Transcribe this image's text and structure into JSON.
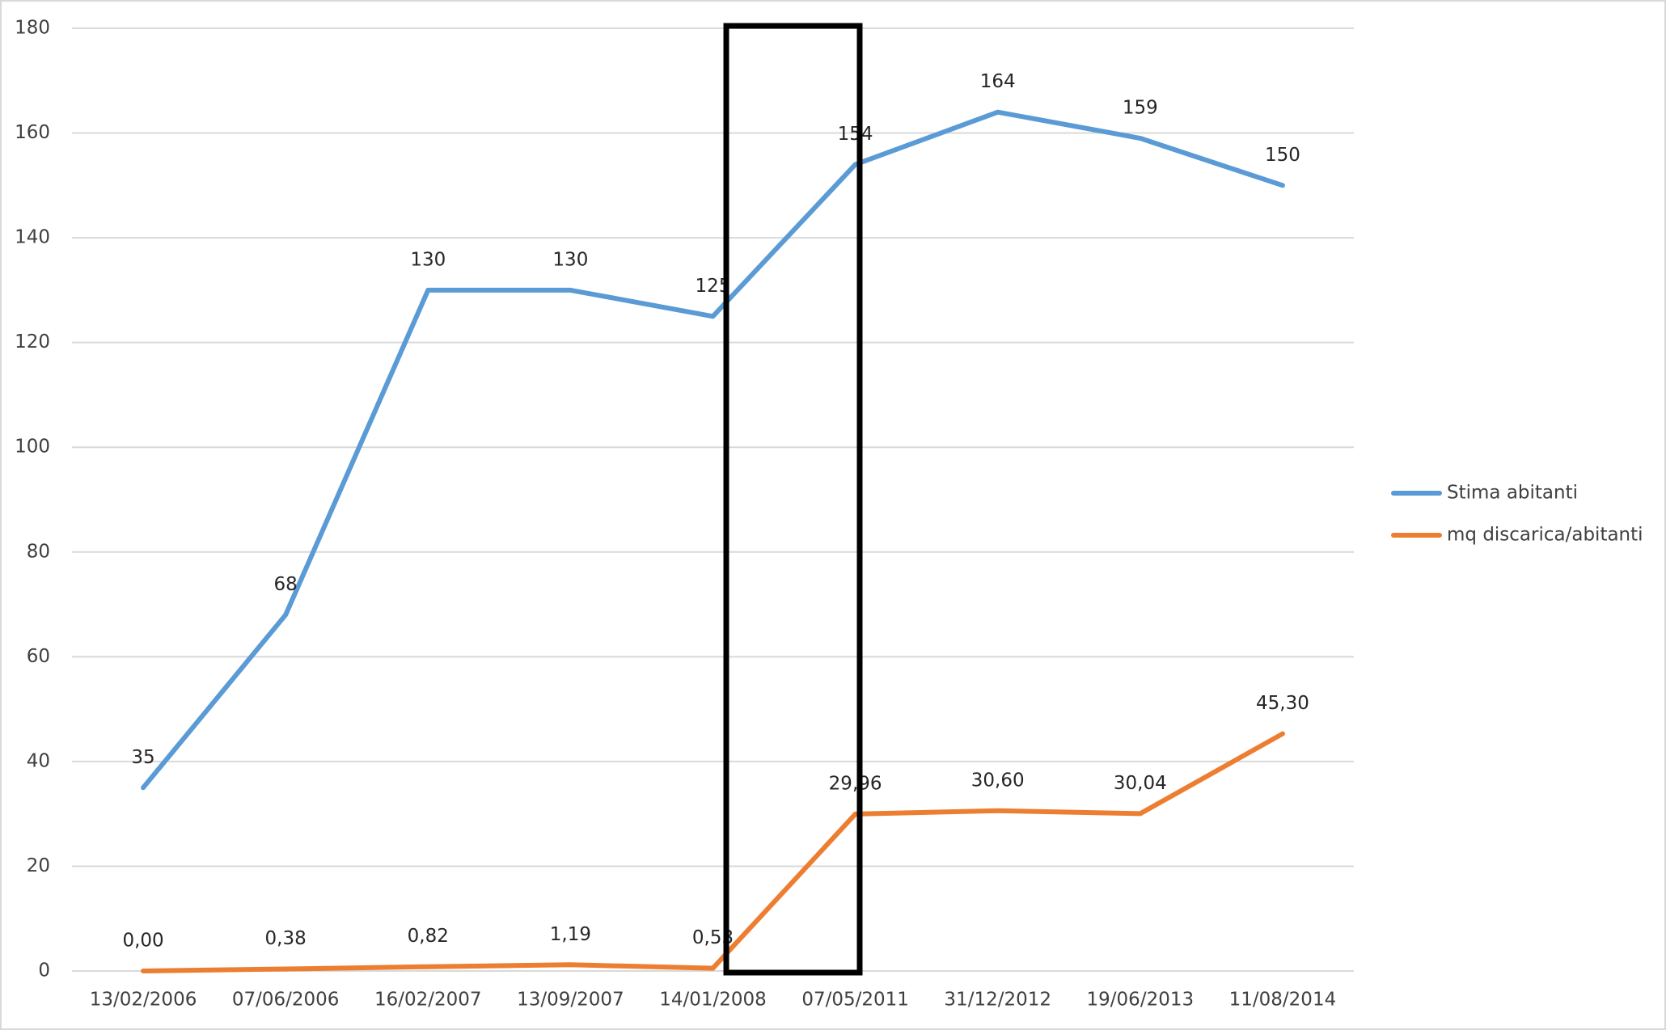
{
  "chart_data": {
    "type": "line",
    "categories": [
      "13/02/2006",
      "07/06/2006",
      "16/02/2007",
      "13/09/2007",
      "14/01/2008",
      "07/05/2011",
      "31/12/2012",
      "19/06/2013",
      "11/08/2014"
    ],
    "series": [
      {
        "name": "Stima abitanti",
        "color": "#5b9bd5",
        "values": [
          35,
          68,
          130,
          130,
          125,
          154,
          164,
          159,
          150
        ]
      },
      {
        "name": "mq discarica/abitanti",
        "color": "#ed7d31",
        "values": [
          0,
          0.38,
          0.82,
          1.19,
          0.53,
          29.96,
          30.6,
          30.04,
          45.3
        ],
        "value_labels": [
          "0,00",
          "0,38",
          "0,82",
          "1,19",
          "0,53",
          "29,96",
          "30,60",
          "30,04",
          "45,30"
        ]
      }
    ],
    "ylim": [
      0,
      180
    ],
    "yticks": [
      0,
      20,
      40,
      60,
      80,
      100,
      120,
      140,
      160,
      180
    ],
    "grid": true,
    "legend": "right"
  }
}
